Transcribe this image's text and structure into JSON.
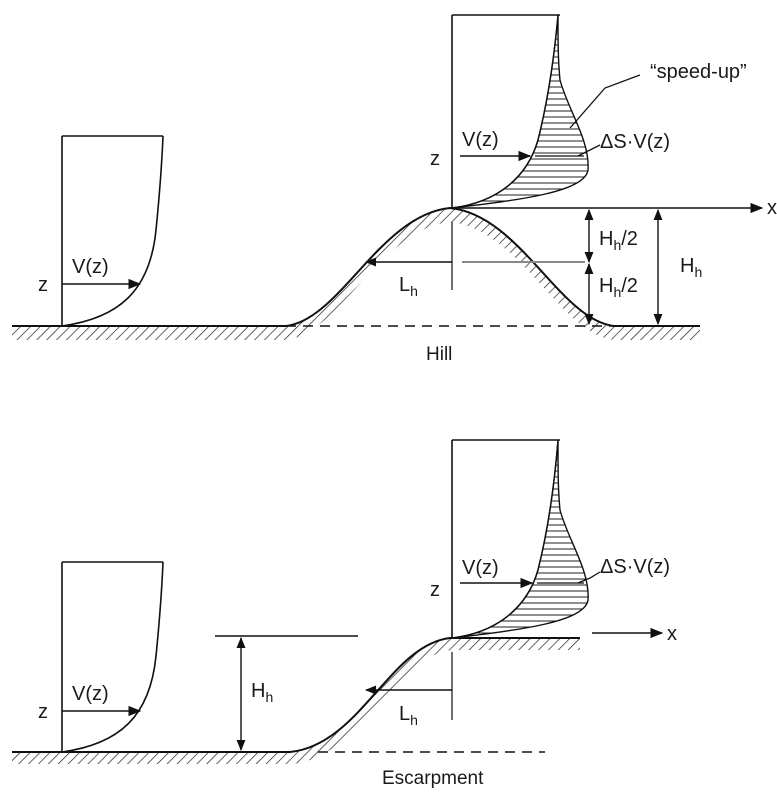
{
  "hill": {
    "caption": "Hill",
    "speed_up": "“speed-up”",
    "vz_upstream": "V(z)",
    "z_upstream": "z",
    "vz_crest": "V(z)",
    "z_crest": "z",
    "delta_sv": "ΔS·V(z)",
    "x_axis": "x",
    "half_height_top": {
      "main": "H",
      "sub": "h",
      "rest": "/2"
    },
    "half_height_bottom": {
      "main": "H",
      "sub": "h",
      "rest": "/2"
    },
    "height": {
      "main": "H",
      "sub": "h"
    },
    "length": {
      "main": "L",
      "sub": "h"
    }
  },
  "escarpment": {
    "caption": "Escarpment",
    "vz_upstream": "V(z)",
    "z_upstream": "z",
    "vz_crest": "V(z)",
    "z_crest": "z",
    "delta_sv": "ΔS·V(z)",
    "x_axis": "x",
    "height": {
      "main": "H",
      "sub": "h"
    },
    "length": {
      "main": "L",
      "sub": "h"
    }
  }
}
